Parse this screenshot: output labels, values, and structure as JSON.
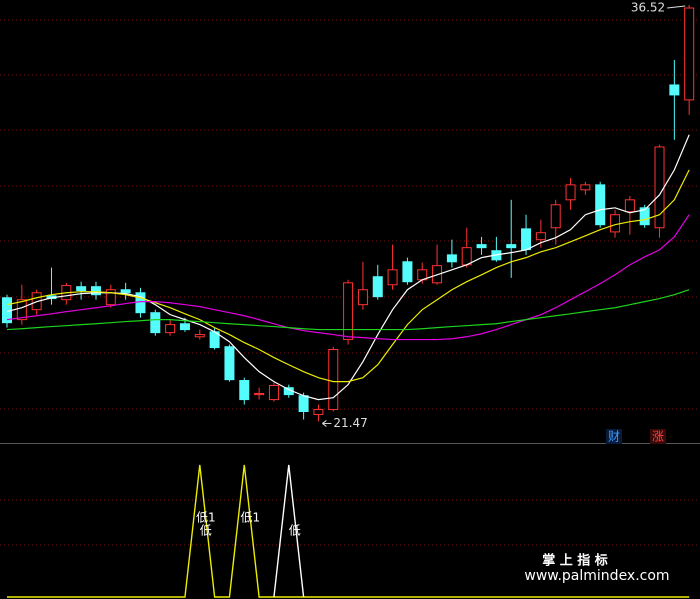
{
  "chart_data": [
    {
      "type": "candlestick",
      "ylim": [
        20.8,
        36.7
      ],
      "up_color": "#ff3232",
      "down_color": "#54fcfc",
      "open": [
        25.94,
        25.15,
        25.51,
        26.01,
        25.87,
        26.34,
        26.34,
        25.69,
        26.23,
        26.12,
        25.4,
        24.68,
        25.0,
        24.53,
        24.71,
        24.17,
        22.95,
        22.44,
        22.26,
        22.69,
        22.4,
        21.72,
        21.9,
        24.43,
        25.69,
        26.7,
        26.41,
        27.24,
        26.59,
        26.48,
        27.49,
        27.13,
        27.86,
        27.64,
        27.86,
        28.43,
        28.04,
        28.47,
        29.48,
        29.84,
        30.02,
        28.32,
        29.05,
        29.19,
        28.47,
        33.63,
        33.09
      ],
      "close": [
        25.04,
        25.87,
        26.12,
        25.91,
        26.38,
        26.2,
        26.05,
        26.23,
        26.12,
        25.4,
        24.68,
        24.97,
        24.79,
        24.61,
        24.14,
        22.98,
        22.26,
        22.48,
        22.77,
        22.44,
        21.83,
        21.9,
        24.07,
        26.48,
        26.23,
        25.98,
        26.95,
        26.52,
        26.95,
        27.1,
        27.24,
        27.75,
        27.75,
        27.31,
        27.75,
        27.68,
        28.29,
        29.3,
        30.02,
        30.02,
        28.58,
        28.94,
        29.48,
        28.58,
        31.39,
        33.27,
        36.41
      ],
      "high": [
        26.05,
        26.41,
        26.23,
        27.03,
        26.48,
        26.52,
        26.52,
        26.41,
        26.48,
        26.3,
        25.51,
        25.15,
        25.22,
        24.79,
        24.86,
        24.25,
        23.05,
        22.69,
        22.87,
        22.8,
        22.51,
        22.08,
        24.17,
        26.59,
        27.24,
        27.13,
        27.86,
        27.39,
        27.21,
        27.86,
        28.04,
        28.47,
        28.14,
        28.14,
        29.48,
        28.94,
        28.76,
        29.48,
        30.27,
        30.13,
        30.13,
        29.12,
        29.62,
        29.3,
        31.47,
        34.53,
        36.52
      ],
      "low": [
        24.86,
        24.97,
        25.33,
        25.69,
        25.69,
        25.87,
        25.87,
        25.58,
        25.87,
        25.22,
        24.57,
        24.57,
        24.71,
        24.43,
        24.07,
        22.91,
        22.08,
        22.26,
        22.19,
        22.33,
        21.54,
        21.47,
        21.83,
        24.25,
        25.51,
        25.87,
        26.23,
        26.41,
        26.45,
        26.41,
        27.03,
        27.03,
        27.49,
        27.24,
        26.66,
        27.49,
        27.75,
        27.86,
        29.12,
        29.66,
        28.47,
        28.11,
        28.22,
        28.47,
        28.11,
        31.65,
        32.55
      ],
      "series": [
        {
          "color": "#ffffff",
          "values": [
            25.44,
            25.58,
            25.8,
            25.94,
            26.01,
            26.09,
            26.12,
            26.12,
            26.09,
            25.98,
            25.69,
            25.33,
            25.15,
            24.97,
            24.71,
            24.35,
            23.78,
            23.27,
            22.91,
            22.62,
            22.4,
            22.26,
            22.33,
            22.8,
            23.63,
            24.61,
            25.51,
            26.23,
            26.59,
            26.77,
            26.95,
            27.13,
            27.39,
            27.49,
            27.57,
            27.67,
            27.93,
            28.11,
            28.4,
            28.94,
            29.12,
            29.19,
            29.01,
            29.12,
            29.66,
            30.56,
            31.83
          ]
        },
        {
          "color": "#ecec00",
          "values": [
            25.69,
            25.8,
            25.94,
            26.05,
            26.12,
            26.16,
            26.16,
            26.12,
            26.05,
            25.94,
            25.76,
            25.58,
            25.36,
            25.15,
            24.86,
            24.61,
            24.32,
            24.07,
            23.78,
            23.52,
            23.27,
            23.05,
            22.91,
            22.91,
            23.05,
            23.52,
            24.25,
            24.97,
            25.51,
            25.87,
            26.23,
            26.52,
            26.77,
            27.03,
            27.24,
            27.39,
            27.6,
            27.75,
            27.96,
            28.18,
            28.4,
            28.58,
            28.69,
            28.76,
            28.94,
            29.48,
            30.56
          ]
        },
        {
          "color": "#e000e0",
          "values": [
            25.15,
            25.22,
            25.29,
            25.36,
            25.44,
            25.51,
            25.58,
            25.65,
            25.73,
            25.8,
            25.8,
            25.76,
            25.69,
            25.62,
            25.51,
            25.4,
            25.29,
            25.15,
            25.0,
            24.86,
            24.75,
            24.68,
            24.61,
            24.53,
            24.5,
            24.46,
            24.43,
            24.43,
            24.43,
            24.43,
            24.46,
            24.53,
            24.64,
            24.79,
            24.97,
            25.15,
            25.33,
            25.58,
            25.87,
            26.16,
            26.45,
            26.77,
            27.13,
            27.42,
            27.67,
            28.14,
            28.94
          ]
        },
        {
          "color": "#1ed21e",
          "values": [
            24.79,
            24.82,
            24.86,
            24.9,
            24.93,
            24.97,
            25.0,
            25.04,
            25.08,
            25.11,
            25.15,
            25.15,
            25.11,
            25.08,
            25.04,
            25.0,
            24.97,
            24.93,
            24.9,
            24.86,
            24.82,
            24.79,
            24.79,
            24.79,
            24.79,
            24.79,
            24.79,
            24.79,
            24.82,
            24.86,
            24.9,
            24.93,
            24.97,
            25.0,
            25.08,
            25.15,
            25.22,
            25.29,
            25.36,
            25.44,
            25.51,
            25.58,
            25.69,
            25.8,
            25.91,
            26.05,
            26.23
          ]
        }
      ],
      "badges": [
        "财",
        "涨"
      ]
    },
    {
      "type": "line",
      "ylim": [
        0,
        1
      ],
      "series": [
        {
          "color": "#ecec00",
          "values": [
            0,
            0,
            0,
            0,
            0,
            0,
            0,
            0,
            0,
            0,
            0,
            0,
            0,
            1,
            0,
            0,
            1,
            0,
            0,
            0,
            0,
            0,
            0,
            0,
            0,
            0,
            0,
            0,
            0,
            0,
            0,
            0,
            0,
            0,
            0,
            0,
            0,
            0,
            0,
            0,
            0,
            0,
            0,
            0,
            0,
            0,
            0
          ]
        },
        {
          "color": "#ffffff",
          "values": [
            null,
            null,
            null,
            null,
            null,
            null,
            null,
            null,
            null,
            null,
            null,
            null,
            null,
            null,
            null,
            null,
            null,
            null,
            0,
            1,
            0,
            null,
            null,
            null,
            null,
            null,
            null,
            null,
            null,
            null,
            null,
            null,
            null,
            null,
            null,
            null,
            null,
            null,
            null,
            null,
            null,
            null,
            null,
            null,
            null,
            null,
            null
          ]
        }
      ],
      "annotations": [
        {
          "x": 13,
          "text": "低1"
        },
        {
          "x": 13,
          "text": "低"
        },
        {
          "x": 16,
          "text": "低1"
        },
        {
          "x": 19,
          "text": "低"
        }
      ]
    }
  ],
  "watermark": {
    "title": "掌 上 指 标",
    "url": "www.palmindex.com"
  }
}
